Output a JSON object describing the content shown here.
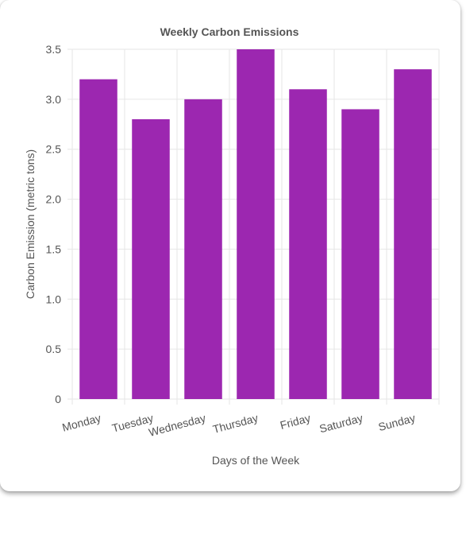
{
  "chart_data": {
    "type": "bar",
    "title": "Weekly Carbon Emissions",
    "xlabel": "Days of the Week",
    "ylabel": "Carbon Emission (metric tons)",
    "categories": [
      "Monday",
      "Tuesday",
      "Wednesday",
      "Thursday",
      "Friday",
      "Saturday",
      "Sunday"
    ],
    "values": [
      3.2,
      2.8,
      3.0,
      3.5,
      3.1,
      2.9,
      3.3
    ],
    "ylim": [
      0,
      3.5
    ],
    "yticks": [
      "0",
      "0.5",
      "1.0",
      "1.5",
      "2.0",
      "2.5",
      "3.0",
      "3.5"
    ],
    "grid": true,
    "legend": "none",
    "colors": {
      "bar": "#9c27b0",
      "grid": "#e6e6e6",
      "text": "#555555"
    }
  }
}
